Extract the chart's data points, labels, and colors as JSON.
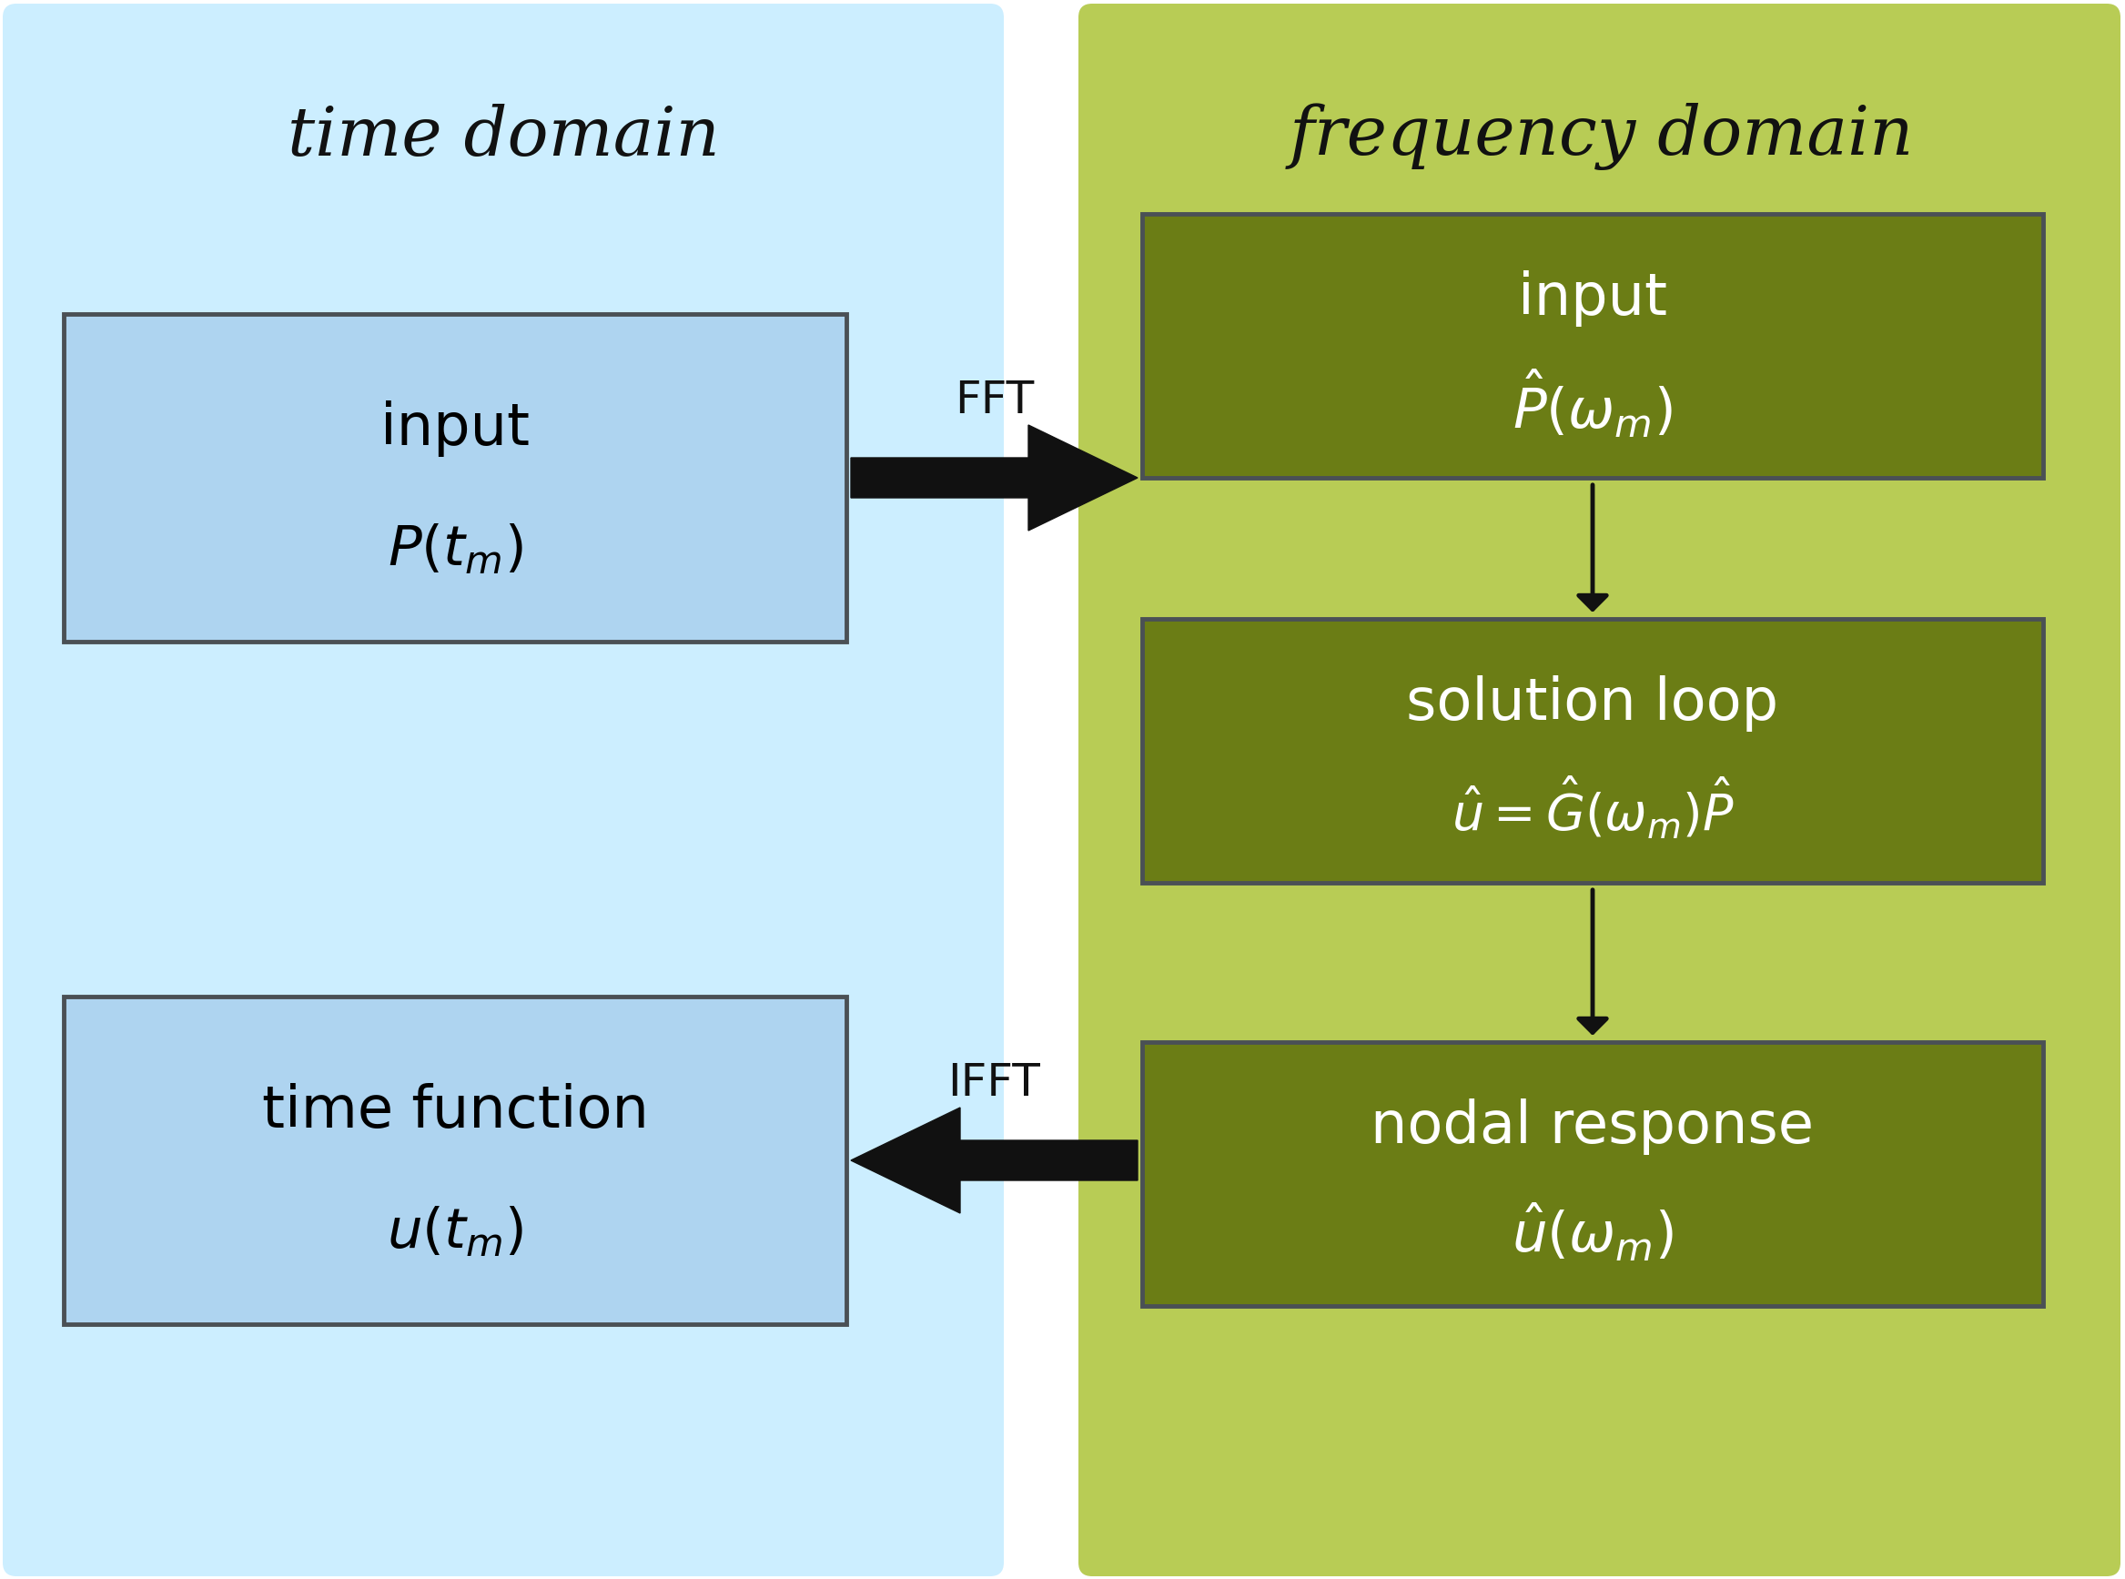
{
  "left_bg_color": "#cceeff",
  "right_bg_color": "#b8cc55",
  "left_title": "time domain",
  "right_title": "frequency domain",
  "left_box_color": "#aed4f0",
  "left_box_edge": "#4a5055",
  "right_box_color": "#6b7d15",
  "right_box_edge": "#4a5055",
  "box_text_color": "#000000",
  "right_text_color": "#ffffff",
  "title_color": "#111111",
  "arrow_color": "#111111",
  "fft_label": "FFT",
  "ifft_label": "IFFT",
  "left_box1_line1": "input",
  "left_box1_line2": "$P(t_m)$",
  "left_box2_line1": "time function",
  "left_box2_line2": "$u(t_m)$",
  "right_box1_line1": "input",
  "right_box1_line2": "$\\hat{P}(\\omega_m)$",
  "right_box2_line1": "solution loop",
  "right_box2_line2": "$\\hat{u}=\\hat{G}(\\omega_m)\\hat{P}$",
  "right_box3_line1": "nodal response",
  "right_box3_line2": "$\\hat{u}(\\omega_m)$"
}
